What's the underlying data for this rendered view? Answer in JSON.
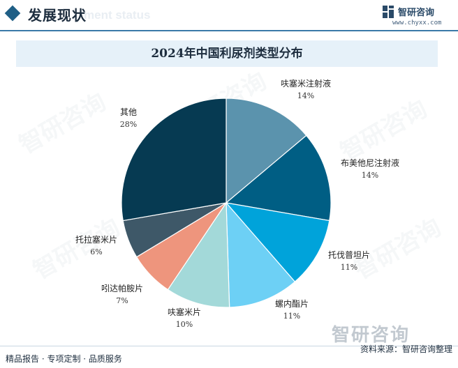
{
  "header": {
    "title": "发展现状",
    "ghost_text": "ment status"
  },
  "brand": {
    "name": "智研咨询",
    "url": "www.chyxx.com"
  },
  "chart_data": {
    "type": "pie",
    "title": "2024年中国利尿剂类型分布",
    "slices": [
      {
        "label": "呋塞米注射液",
        "value": 14,
        "display": "14%",
        "color": "#5b93ad"
      },
      {
        "label": "布美他尼注射液",
        "value": 14,
        "display": "14%",
        "color": "#005e84"
      },
      {
        "label": "托伐普坦片",
        "value": 11,
        "display": "11%",
        "color": "#00a3da"
      },
      {
        "label": "螺内酯片",
        "value": 11,
        "display": "11%",
        "color": "#6dd0f5"
      },
      {
        "label": "呋塞米片",
        "value": 10,
        "display": "10%",
        "color": "#a3d9d9"
      },
      {
        "label": "吲达帕胺片",
        "value": 7,
        "display": "7%",
        "color": "#ee957d"
      },
      {
        "label": "托拉塞米片",
        "value": 6,
        "display": "6%",
        "color": "#3e5868"
      },
      {
        "label": "其他",
        "value": 28,
        "display": "28%",
        "color": "#063a52"
      }
    ]
  },
  "watermark": {
    "text": "智研咨询"
  },
  "footer": {
    "left": "精品报告 · 专项定制 · 品质服务",
    "right": "资料来源：智研咨询整理",
    "logo": "智研咨询"
  }
}
